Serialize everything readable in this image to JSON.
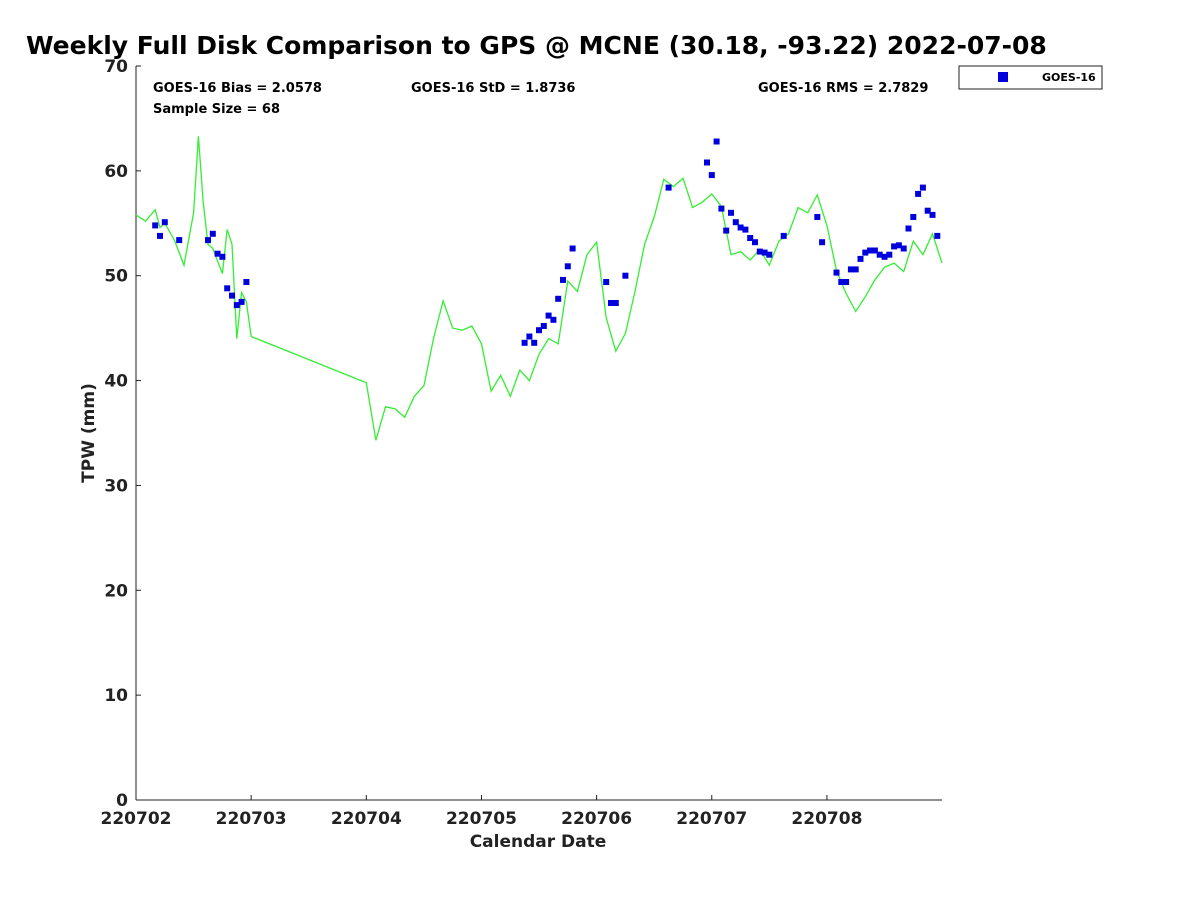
{
  "chart_data": {
    "type": "scatter",
    "title": "Weekly Full Disk Comparison to GPS @ MCNE (30.18, -93.22) 2022-07-08",
    "xlabel": "Calendar Date",
    "ylabel": "TPW (mm)",
    "xlim": [
      "2022-07-02 00:00",
      "2022-07-08 23:59"
    ],
    "ylim": [
      0,
      70
    ],
    "x_ticks": [
      "220702",
      "220703",
      "220704",
      "220705",
      "220706",
      "220707",
      "220708"
    ],
    "y_ticks": [
      0,
      10,
      20,
      30,
      40,
      50,
      60,
      70
    ],
    "grid": false,
    "legend": {
      "position": "outside-top-right",
      "entries": [
        "GOES-16"
      ]
    },
    "stats": {
      "bias": "GOES-16 Bias = 2.0578",
      "std": "GOES-16 StD = 1.8736",
      "rms": "GOES-16 RMS = 2.7829",
      "sample": "Sample Size = 68"
    },
    "colors": {
      "goes16": "#0000dd",
      "gps": "#33ee33",
      "axes": "#222222"
    },
    "series": [
      {
        "name": "GOES-16",
        "style": "square-markers",
        "x": [
          "2022-07-02 04:00",
          "2022-07-02 05:00",
          "2022-07-02 06:00",
          "2022-07-02 09:00",
          "2022-07-02 15:00",
          "2022-07-02 16:00",
          "2022-07-02 17:00",
          "2022-07-02 18:00",
          "2022-07-02 19:00",
          "2022-07-02 20:00",
          "2022-07-02 21:00",
          "2022-07-02 22:00",
          "2022-07-02 23:00",
          "2022-07-03 00:00",
          "2022-07-05 09:00",
          "2022-07-05 10:00",
          "2022-07-05 11:00",
          "2022-07-05 12:00",
          "2022-07-05 13:00",
          "2022-07-05 14:00",
          "2022-07-05 15:00",
          "2022-07-05 16:00",
          "2022-07-05 17:00",
          "2022-07-05 18:00",
          "2022-07-05 19:00",
          "2022-07-06 02:00",
          "2022-07-06 03:00",
          "2022-07-06 04:00",
          "2022-07-06 06:00",
          "2022-07-06 15:00",
          "2022-07-06 23:00",
          "2022-07-07 00:00",
          "2022-07-07 01:00",
          "2022-07-07 02:00",
          "2022-07-07 03:00",
          "2022-07-07 04:00",
          "2022-07-07 05:00",
          "2022-07-07 06:00",
          "2022-07-07 07:00",
          "2022-07-07 08:00",
          "2022-07-07 09:00",
          "2022-07-07 10:00",
          "2022-07-07 11:00",
          "2022-07-07 12:00",
          "2022-07-07 15:00",
          "2022-07-07 22:00",
          "2022-07-07 23:00",
          "2022-07-08 02:00",
          "2022-07-08 03:00",
          "2022-07-08 04:00",
          "2022-07-08 05:00",
          "2022-07-08 06:00",
          "2022-07-08 07:00",
          "2022-07-08 08:00",
          "2022-07-08 09:00",
          "2022-07-08 10:00",
          "2022-07-08 11:00",
          "2022-07-08 12:00",
          "2022-07-08 13:00",
          "2022-07-08 14:00",
          "2022-07-08 15:00",
          "2022-07-08 16:00",
          "2022-07-08 17:00",
          "2022-07-08 18:00",
          "2022-07-08 19:00",
          "2022-07-08 20:00",
          "2022-07-08 21:00",
          "2022-07-08 22:00",
          "2022-07-08 23:00"
        ],
        "y": [
          54.8,
          53.8,
          55.1,
          53.4,
          53.4,
          54.0,
          52.1,
          51.8,
          48.8,
          48.1,
          47.2,
          47.5,
          49.4,
          null,
          43.6,
          44.2,
          43.6,
          44.8,
          45.2,
          46.2,
          45.8,
          47.8,
          49.6,
          50.9,
          52.6,
          49.4,
          47.4,
          47.4,
          50.0,
          58.4,
          60.8,
          59.6,
          62.8,
          56.4,
          54.3,
          56.0,
          55.1,
          54.6,
          54.4,
          53.6,
          53.2,
          52.3,
          52.2,
          52.0,
          53.8,
          55.6,
          53.2,
          50.3,
          49.4,
          49.4,
          50.6,
          50.6,
          51.6,
          52.2,
          52.4,
          52.4,
          52.0,
          51.8,
          52.0,
          52.8,
          52.9,
          52.6,
          54.5,
          55.6,
          57.8,
          58.4,
          56.2,
          55.8,
          53.8
        ]
      },
      {
        "name": "GPS",
        "style": "line",
        "x": [
          "2022-07-02 00:00",
          "2022-07-02 02:00",
          "2022-07-02 04:00",
          "2022-07-02 05:00",
          "2022-07-02 06:00",
          "2022-07-02 08:00",
          "2022-07-02 10:00",
          "2022-07-02 12:00",
          "2022-07-02 13:00",
          "2022-07-02 14:00",
          "2022-07-02 15:00",
          "2022-07-02 16:00",
          "2022-07-02 18:00",
          "2022-07-02 19:00",
          "2022-07-02 20:00",
          "2022-07-02 21:00",
          "2022-07-02 22:00",
          "2022-07-02 23:00",
          "2022-07-03 00:00",
          "2022-07-04 00:00",
          "2022-07-04 02:00",
          "2022-07-04 04:00",
          "2022-07-04 06:00",
          "2022-07-04 08:00",
          "2022-07-04 10:00",
          "2022-07-04 12:00",
          "2022-07-04 14:00",
          "2022-07-04 16:00",
          "2022-07-04 18:00",
          "2022-07-04 20:00",
          "2022-07-04 22:00",
          "2022-07-05 00:00",
          "2022-07-05 02:00",
          "2022-07-05 04:00",
          "2022-07-05 06:00",
          "2022-07-05 08:00",
          "2022-07-05 10:00",
          "2022-07-05 12:00",
          "2022-07-05 14:00",
          "2022-07-05 16:00",
          "2022-07-05 18:00",
          "2022-07-05 20:00",
          "2022-07-05 22:00",
          "2022-07-06 00:00",
          "2022-07-06 02:00",
          "2022-07-06 04:00",
          "2022-07-06 06:00",
          "2022-07-06 08:00",
          "2022-07-06 10:00",
          "2022-07-06 12:00",
          "2022-07-06 14:00",
          "2022-07-06 16:00",
          "2022-07-06 18:00",
          "2022-07-06 20:00",
          "2022-07-06 22:00",
          "2022-07-07 00:00",
          "2022-07-07 02:00",
          "2022-07-07 04:00",
          "2022-07-07 06:00",
          "2022-07-07 08:00",
          "2022-07-07 10:00",
          "2022-07-07 12:00",
          "2022-07-07 14:00",
          "2022-07-07 16:00",
          "2022-07-07 18:00",
          "2022-07-07 20:00",
          "2022-07-07 22:00",
          "2022-07-08 00:00",
          "2022-07-08 02:00",
          "2022-07-08 04:00",
          "2022-07-08 06:00",
          "2022-07-08 08:00",
          "2022-07-08 10:00",
          "2022-07-08 12:00",
          "2022-07-08 14:00",
          "2022-07-08 16:00",
          "2022-07-08 18:00",
          "2022-07-08 20:00",
          "2022-07-08 22:00",
          "2022-07-08 23:59"
        ],
        "y": [
          55.8,
          55.2,
          56.3,
          54.6,
          55.0,
          53.4,
          51.0,
          56.0,
          63.3,
          57.0,
          53.0,
          52.6,
          50.2,
          54.4,
          53.0,
          44.0,
          48.4,
          47.5,
          44.2,
          39.8,
          34.3,
          37.5,
          37.3,
          36.5,
          38.5,
          39.5,
          44.0,
          47.6,
          45.0,
          44.8,
          45.2,
          43.5,
          39.0,
          40.5,
          38.5,
          41.0,
          40.0,
          42.5,
          44.0,
          43.5,
          49.5,
          48.5,
          52.0,
          53.2,
          46.0,
          42.8,
          44.5,
          48.5,
          53.0,
          55.6,
          59.2,
          58.5,
          59.3,
          56.5,
          57.0,
          57.8,
          56.6,
          52.0,
          52.3,
          51.5,
          52.5,
          51.0,
          53.3,
          54.0,
          56.5,
          56.0,
          57.7,
          54.8,
          50.5,
          48.3,
          46.6,
          48.0,
          49.6,
          50.8,
          51.2,
          50.4,
          53.3,
          52.0,
          54.0,
          51.2
        ]
      }
    ]
  }
}
